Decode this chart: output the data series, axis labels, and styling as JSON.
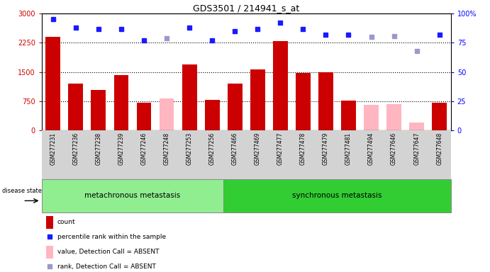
{
  "title": "GDS3501 / 214941_s_at",
  "samples": [
    "GSM277231",
    "GSM277236",
    "GSM277238",
    "GSM277239",
    "GSM277246",
    "GSM277248",
    "GSM277253",
    "GSM277256",
    "GSM277466",
    "GSM277469",
    "GSM277477",
    "GSM277478",
    "GSM277479",
    "GSM277481",
    "GSM277494",
    "GSM277646",
    "GSM277647",
    "GSM277648"
  ],
  "count_values": [
    2400,
    1200,
    1050,
    1430,
    720,
    830,
    1700,
    780,
    1200,
    1570,
    2300,
    1470,
    1500,
    760,
    660,
    670,
    200,
    720
  ],
  "count_absent": [
    false,
    false,
    false,
    false,
    false,
    true,
    false,
    false,
    false,
    false,
    false,
    false,
    false,
    false,
    true,
    true,
    true,
    false
  ],
  "pct_rank": [
    95,
    88,
    87,
    87,
    77,
    79,
    88,
    77,
    85,
    87,
    92,
    87,
    82,
    82,
    80,
    81,
    68,
    82
  ],
  "pct_rank_absent": [
    false,
    false,
    false,
    false,
    false,
    true,
    false,
    false,
    false,
    false,
    false,
    false,
    false,
    false,
    true,
    true,
    true,
    false
  ],
  "group_boundary": 8,
  "group1_label": "metachronous metastasis",
  "group2_label": "synchronous metastasis",
  "group1_color": "#90EE90",
  "group2_color": "#32CD32",
  "bar_color_present": "#CC0000",
  "bar_color_absent": "#FFB6C1",
  "marker_color_present": "#1a1aff",
  "marker_color_absent": "#9999CC",
  "ylim_left": [
    0,
    3000
  ],
  "ylim_right": [
    0,
    100
  ],
  "yticks_left": [
    0,
    750,
    1500,
    2250,
    3000
  ],
  "ytick_labels_left": [
    "0",
    "750",
    "1500",
    "2250",
    "3000"
  ],
  "yticks_right": [
    0,
    25,
    50,
    75,
    100
  ],
  "ytick_labels_right": [
    "0",
    "25",
    "50",
    "75",
    "100%"
  ],
  "hlines": [
    750,
    1500,
    2250
  ],
  "tick_area_color": "#d3d3d3"
}
